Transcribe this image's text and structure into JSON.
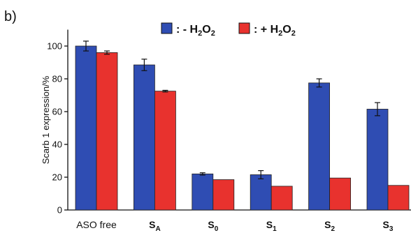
{
  "panel_label": "b)",
  "colors": {
    "minus": "#2f4db3",
    "plus": "#e8322e",
    "axis": "#111111"
  },
  "chart_data": {
    "type": "bar",
    "ylabel": "Scarb 1 expression/%",
    "ylim": [
      0,
      110
    ],
    "yticks": [
      0,
      20,
      40,
      60,
      80,
      100
    ],
    "categories": [
      {
        "main": "ASO free",
        "sub": ""
      },
      {
        "main": "S",
        "sub": "A"
      },
      {
        "main": "S",
        "sub": "0"
      },
      {
        "main": "S",
        "sub": "1"
      },
      {
        "main": "S",
        "sub": "2"
      },
      {
        "main": "S",
        "sub": "3"
      }
    ],
    "series": [
      {
        "legend": {
          "prefix": ": - H",
          "sub1": "2",
          "mid": "O",
          "sub2": "2"
        },
        "color": "#2f4db3",
        "values": [
          100,
          88.5,
          22,
          21.5,
          77.5,
          61.5
        ],
        "errors": [
          3,
          3.5,
          0.7,
          2.5,
          2.5,
          4
        ]
      },
      {
        "legend": {
          "prefix": ": + H",
          "sub1": "2",
          "mid": "O",
          "sub2": "2"
        },
        "color": "#e8322e",
        "values": [
          96,
          72.5,
          18.5,
          14.5,
          19.5,
          15
        ],
        "errors": [
          1,
          0.5,
          0,
          0,
          0,
          0
        ]
      }
    ],
    "grid": false,
    "legend_position": "top"
  }
}
